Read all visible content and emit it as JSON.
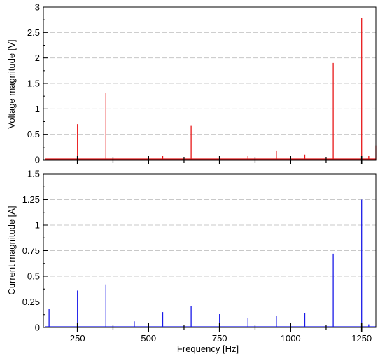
{
  "chart_data": [
    {
      "type": "bar",
      "ylabel": "Voltage magnitude [V]",
      "ylim": [
        0,
        3
      ],
      "yticks": [
        0,
        0.5,
        1,
        1.5,
        2,
        2.5,
        3
      ],
      "ytick_labels": [
        "0",
        "0.5",
        "1",
        "1.5",
        "2",
        "2.5",
        "3"
      ],
      "xlim": [
        130,
        1300
      ],
      "grid": "horizontal dashed",
      "color": "#e8191a",
      "x": [
        250,
        350,
        550,
        650,
        750,
        850,
        950,
        1050,
        1150,
        1250,
        1275,
        1300
      ],
      "values": [
        0.7,
        1.31,
        0.08,
        0.68,
        0.07,
        0.08,
        0.18,
        0.1,
        1.9,
        2.78,
        0.07,
        0.28
      ]
    },
    {
      "type": "bar",
      "xlabel": "Frequency [Hz]",
      "ylabel": "Current magnitude [A]",
      "ylim": [
        0,
        1.5
      ],
      "yticks": [
        0,
        0.25,
        0.5,
        0.75,
        1,
        1.25,
        1.5
      ],
      "ytick_labels": [
        "0",
        "0.25",
        "0.5",
        "0.75",
        "1",
        "1.25",
        "1.5"
      ],
      "xlim": [
        130,
        1300
      ],
      "xticks": [
        250,
        500,
        750,
        1000,
        1250
      ],
      "xtick_labels": [
        "250",
        "500",
        "750",
        "1000",
        "1250"
      ],
      "grid": "horizontal dashed",
      "color": "#1a1ae8",
      "x": [
        150,
        250,
        350,
        450,
        550,
        650,
        750,
        850,
        950,
        1000,
        1050,
        1150,
        1250,
        1275
      ],
      "values": [
        0.18,
        0.36,
        0.42,
        0.06,
        0.15,
        0.21,
        0.13,
        0.09,
        0.11,
        0.03,
        0.14,
        0.72,
        1.25,
        0.03
      ]
    }
  ]
}
